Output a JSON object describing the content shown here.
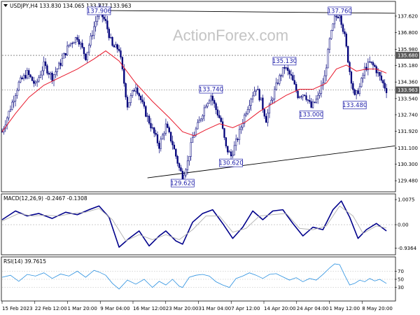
{
  "watermark": "ActionForex.com",
  "colors": {
    "candle": "#00007a",
    "ma": "#e8192c",
    "macd": "#00008b",
    "signal": "#b0b0b0",
    "rsi": "#2a90e0",
    "annotation": "#1f1faa",
    "tag": "#5a5a5a"
  },
  "chart_data": [
    {
      "type": "candlestick",
      "header": "USDJPY,H4 133.830 134.065 133.777 133.963",
      "ylim": [
        129.0,
        138.0
      ],
      "y_ticks": [
        "137.620",
        "136.800",
        "135.980",
        "135.180",
        "134.360",
        "133.540",
        "132.740",
        "131.920",
        "131.100",
        "130.300",
        "129.480"
      ],
      "price_tags": [
        {
          "label": "135.680",
          "value": 135.68
        },
        {
          "label": "133.963",
          "value": 133.963
        }
      ],
      "x_ticks": [
        "15 Feb 2023",
        "22 Feb 12:00",
        "1 Mar 20:00",
        "9 Mar 04:00",
        "16 Mar 12:00",
        "23 Mar 20:00",
        "31 Mar 04:00",
        "7 Apr 12:00",
        "14 Apr 20:00",
        "24 Apr 04:00",
        "1 May 12:00",
        "8 May 20:00"
      ],
      "close_path": [
        [
          0,
          131.9
        ],
        [
          5,
          133.1
        ],
        [
          10,
          134.3
        ],
        [
          15,
          134.8
        ],
        [
          20,
          134.2
        ],
        [
          25,
          135.2
        ],
        [
          30,
          134.6
        ],
        [
          35,
          135.3
        ],
        [
          40,
          136.2
        ],
        [
          45,
          136.6
        ],
        [
          50,
          135.6
        ],
        [
          55,
          137.1
        ],
        [
          58,
          137.9
        ],
        [
          62,
          137.3
        ],
        [
          66,
          136.1
        ],
        [
          70,
          136.0
        ],
        [
          75,
          133.2
        ],
        [
          80,
          134.2
        ],
        [
          85,
          133.0
        ],
        [
          90,
          132.0
        ],
        [
          94,
          131.2
        ],
        [
          98,
          132.2
        ],
        [
          102,
          131.3
        ],
        [
          106,
          130.1
        ],
        [
          108,
          129.7
        ],
        [
          111,
          130.4
        ],
        [
          114,
          131.6
        ],
        [
          118,
          132.4
        ],
        [
          122,
          133.3
        ],
        [
          125,
          133.7
        ],
        [
          128,
          133.0
        ],
        [
          131,
          132.4
        ],
        [
          134,
          131.1
        ],
        [
          137,
          130.7
        ],
        [
          141,
          131.6
        ],
        [
          145,
          132.7
        ],
        [
          149,
          133.6
        ],
        [
          152,
          134.1
        ],
        [
          155,
          133.4
        ],
        [
          158,
          132.5
        ],
        [
          161,
          133.4
        ],
        [
          165,
          134.4
        ],
        [
          169,
          135.1
        ],
        [
          173,
          134.6
        ],
        [
          177,
          133.7
        ],
        [
          181,
          133.8
        ],
        [
          185,
          133.1
        ],
        [
          189,
          133.6
        ],
        [
          193,
          134.6
        ],
        [
          196,
          136.4
        ],
        [
          199,
          137.5
        ],
        [
          202,
          137.76
        ],
        [
          205,
          136.6
        ],
        [
          208,
          134.9
        ],
        [
          211,
          133.6
        ],
        [
          214,
          134.1
        ],
        [
          217,
          135.0
        ],
        [
          220,
          135.3
        ],
        [
          223,
          135.1
        ],
        [
          226,
          134.6
        ],
        [
          230,
          133.963
        ]
      ],
      "moving_average": [
        [
          0,
          131.9
        ],
        [
          8,
          132.8
        ],
        [
          16,
          133.6
        ],
        [
          25,
          134.2
        ],
        [
          35,
          134.6
        ],
        [
          45,
          135.0
        ],
        [
          55,
          135.5
        ],
        [
          62,
          135.9
        ],
        [
          70,
          135.4
        ],
        [
          80,
          134.3
        ],
        [
          90,
          133.4
        ],
        [
          100,
          132.6
        ],
        [
          108,
          131.9
        ],
        [
          115,
          131.7
        ],
        [
          122,
          132.0
        ],
        [
          130,
          132.3
        ],
        [
          138,
          132.1
        ],
        [
          146,
          132.4
        ],
        [
          154,
          132.9
        ],
        [
          162,
          133.3
        ],
        [
          170,
          133.7
        ],
        [
          178,
          134.0
        ],
        [
          186,
          134.0
        ],
        [
          194,
          134.3
        ],
        [
          200,
          135.0
        ],
        [
          206,
          135.2
        ],
        [
          212,
          134.9
        ],
        [
          218,
          135.0
        ],
        [
          224,
          135.0
        ],
        [
          230,
          134.8
        ]
      ],
      "levels": [
        {
          "name": "resistance-135.68",
          "value": 135.68,
          "style": "dashed"
        },
        {
          "name": "close-133.963",
          "value": 133.963,
          "style": "dashed"
        }
      ],
      "trendlines": [
        {
          "name": "upper-trendline",
          "from": [
            58,
            137.9
          ],
          "to": [
            235,
            137.76
          ]
        },
        {
          "name": "lower-trendline",
          "from": [
            87,
            129.62
          ],
          "to": [
            235,
            131.2
          ]
        }
      ],
      "annotations": [
        {
          "label": "137.906",
          "x": 58,
          "value": 137.9,
          "side": "above"
        },
        {
          "label": "137.760",
          "x": 202,
          "value": 137.76,
          "side": "above"
        },
        {
          "label": "135.130",
          "x": 169,
          "value": 135.13,
          "side": "above"
        },
        {
          "label": "133.740",
          "x": 125,
          "value": 133.74,
          "side": "above"
        },
        {
          "label": "133.000",
          "x": 185,
          "value": 133.0,
          "side": "below"
        },
        {
          "label": "133.480",
          "x": 211,
          "value": 133.48,
          "side": "below"
        },
        {
          "label": "130.620",
          "x": 137,
          "value": 130.62,
          "side": "below"
        },
        {
          "label": "129.620",
          "x": 108,
          "value": 129.62,
          "side": "below"
        }
      ]
    },
    {
      "type": "line",
      "header": "MACD(12,26,9) -0.2467 -0.1308",
      "ylim": [
        -1.15,
        1.15
      ],
      "y_ticks": [
        {
          "label": "1.0075",
          "value": 1.0075
        },
        {
          "label": "0.00",
          "value": 0.0
        },
        {
          "label": "-0.9364",
          "value": -0.9364
        }
      ],
      "series": [
        {
          "role": "macd",
          "points": [
            [
              0,
              0.2
            ],
            [
              8,
              0.55
            ],
            [
              15,
              0.35
            ],
            [
              22,
              0.45
            ],
            [
              30,
              0.25
            ],
            [
              38,
              0.5
            ],
            [
              45,
              0.4
            ],
            [
              52,
              0.6
            ],
            [
              58,
              0.75
            ],
            [
              64,
              0.3
            ],
            [
              70,
              -0.9
            ],
            [
              76,
              -0.55
            ],
            [
              82,
              -0.25
            ],
            [
              88,
              -0.85
            ],
            [
              94,
              -0.45
            ],
            [
              98,
              -0.25
            ],
            [
              104,
              -0.65
            ],
            [
              108,
              -0.78
            ],
            [
              114,
              0.1
            ],
            [
              120,
              0.45
            ],
            [
              126,
              0.6
            ],
            [
              132,
              0.05
            ],
            [
              138,
              -0.55
            ],
            [
              144,
              -0.1
            ],
            [
              150,
              0.55
            ],
            [
              156,
              0.2
            ],
            [
              162,
              0.55
            ],
            [
              168,
              0.6
            ],
            [
              174,
              0.05
            ],
            [
              180,
              -0.45
            ],
            [
              186,
              -0.1
            ],
            [
              192,
              -0.2
            ],
            [
              198,
              0.6
            ],
            [
              203,
              0.95
            ],
            [
              208,
              0.3
            ],
            [
              213,
              -0.55
            ],
            [
              218,
              -0.2
            ],
            [
              224,
              0.05
            ],
            [
              230,
              -0.25
            ]
          ]
        },
        {
          "role": "signal",
          "points": [
            [
              0,
              0.15
            ],
            [
              10,
              0.45
            ],
            [
              18,
              0.35
            ],
            [
              26,
              0.38
            ],
            [
              34,
              0.35
            ],
            [
              42,
              0.45
            ],
            [
              50,
              0.5
            ],
            [
              58,
              0.65
            ],
            [
              66,
              0.2
            ],
            [
              74,
              -0.65
            ],
            [
              82,
              -0.4
            ],
            [
              90,
              -0.6
            ],
            [
              98,
              -0.4
            ],
            [
              106,
              -0.6
            ],
            [
              114,
              -0.2
            ],
            [
              122,
              0.35
            ],
            [
              130,
              0.35
            ],
            [
              138,
              -0.3
            ],
            [
              146,
              -0.15
            ],
            [
              154,
              0.35
            ],
            [
              162,
              0.4
            ],
            [
              170,
              0.45
            ],
            [
              178,
              -0.15
            ],
            [
              186,
              -0.2
            ],
            [
              194,
              -0.05
            ],
            [
              202,
              0.75
            ],
            [
              210,
              0.35
            ],
            [
              216,
              -0.35
            ],
            [
              224,
              -0.05
            ],
            [
              230,
              -0.13
            ]
          ]
        }
      ]
    },
    {
      "type": "line",
      "header": "RSI(14) 39.7615",
      "ylim": [
        0,
        100
      ],
      "y_ticks": [
        {
          "label": "70",
          "value": 70
        },
        {
          "label": "50",
          "value": 50
        },
        {
          "label": "30",
          "value": 30
        }
      ],
      "levels": [
        70,
        50,
        30
      ],
      "series": [
        {
          "role": "rsi",
          "points": [
            [
              0,
              55
            ],
            [
              5,
              60
            ],
            [
              10,
              45
            ],
            [
              15,
              62
            ],
            [
              20,
              58
            ],
            [
              25,
              66
            ],
            [
              30,
              52
            ],
            [
              35,
              63
            ],
            [
              40,
              58
            ],
            [
              45,
              70
            ],
            [
              50,
              55
            ],
            [
              55,
              72
            ],
            [
              58,
              68
            ],
            [
              62,
              60
            ],
            [
              66,
              40
            ],
            [
              70,
              26
            ],
            [
              75,
              48
            ],
            [
              80,
              38
            ],
            [
              85,
              50
            ],
            [
              90,
              30
            ],
            [
              94,
              45
            ],
            [
              98,
              36
            ],
            [
              102,
              50
            ],
            [
              106,
              33
            ],
            [
              108,
              30
            ],
            [
              112,
              55
            ],
            [
              116,
              60
            ],
            [
              120,
              62
            ],
            [
              124,
              58
            ],
            [
              128,
              44
            ],
            [
              132,
              36
            ],
            [
              136,
              30
            ],
            [
              140,
              52
            ],
            [
              144,
              58
            ],
            [
              148,
              66
            ],
            [
              152,
              60
            ],
            [
              156,
              52
            ],
            [
              160,
              62
            ],
            [
              164,
              64
            ],
            [
              168,
              56
            ],
            [
              172,
              48
            ],
            [
              176,
              54
            ],
            [
              180,
              44
            ],
            [
              184,
              52
            ],
            [
              188,
              48
            ],
            [
              192,
              62
            ],
            [
              196,
              78
            ],
            [
              199,
              88
            ],
            [
              202,
              86
            ],
            [
              205,
              60
            ],
            [
              208,
              36
            ],
            [
              211,
              40
            ],
            [
              214,
              48
            ],
            [
              217,
              44
            ],
            [
              220,
              52
            ],
            [
              223,
              46
            ],
            [
              226,
              50
            ],
            [
              230,
              39.76
            ]
          ]
        }
      ]
    }
  ]
}
